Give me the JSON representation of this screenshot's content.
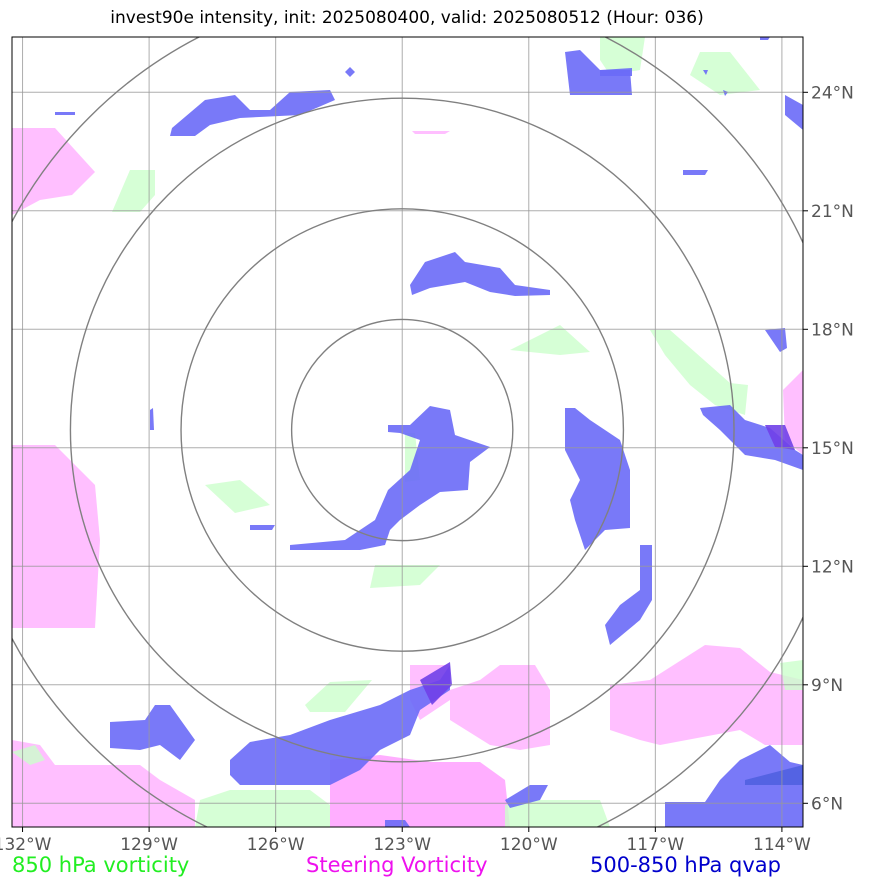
{
  "title": "invest90e intensity, init: 2025080400, valid: 2025080512 (Hour: 036)",
  "chart_data": {
    "type": "map",
    "title": "invest90e intensity, init: 2025080400, valid: 2025080512 (Hour: 036)",
    "lon_range": [
      -132.25,
      -113.5
    ],
    "lat_range": [
      5.4,
      25.4
    ],
    "lon_ticks": [
      -132,
      -129,
      -126,
      -123,
      -120,
      -117,
      -114
    ],
    "lat_ticks": [
      6,
      9,
      12,
      15,
      18,
      21,
      24
    ],
    "lon_tick_labels": [
      "132°W",
      "129°W",
      "126°W",
      "123°W",
      "120°W",
      "117°W",
      "114°W"
    ],
    "lat_tick_labels": [
      "6°N",
      "9°N",
      "12°N",
      "15°N",
      "18°N",
      "21°N",
      "24°N"
    ],
    "storm_center": {
      "lon": -123.0,
      "lat": 15.45
    },
    "range_rings_deg": [
      2.8,
      5.6,
      8.4,
      11.2
    ],
    "grid": true,
    "legend": [
      {
        "label": "850 hPa vorticity",
        "color": "#22ee22",
        "position": "bottom-left"
      },
      {
        "label": "Steering Vorticity",
        "color": "#ee11ee",
        "position": "bottom-center"
      },
      {
        "label": "500-850 hPa qvap",
        "color": "#0000cc",
        "position": "bottom-right"
      }
    ],
    "colors": {
      "vort850": "#ccffcc",
      "steering": "#ffaaff",
      "qvap": "#6a6af7"
    }
  }
}
